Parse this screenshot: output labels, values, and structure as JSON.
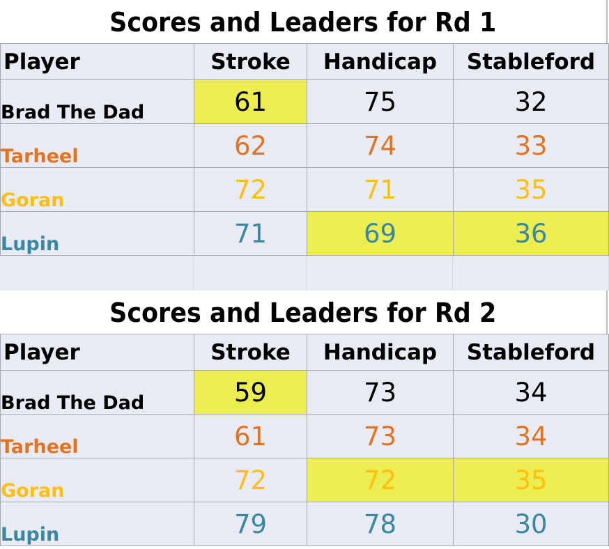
{
  "colors": {
    "cell_background": "#e8eaf4",
    "leader_highlight": "#eced4f",
    "grid_line": "#a7a7a7",
    "brad": "#000000",
    "tarheel": "#e2731f",
    "goran": "#ffbe10",
    "lupin": "#3a87a2"
  },
  "rounds": [
    {
      "title": "Scores and Leaders for Rd 1",
      "headers": [
        "Player",
        "Stroke",
        "Handicap",
        "Stableford"
      ],
      "rows": [
        {
          "player": "Brad The Dad",
          "stroke": "61",
          "handicap": "75",
          "stableford": "32"
        },
        {
          "player": "Tarheel",
          "stroke": "62",
          "handicap": "74",
          "stableford": "33"
        },
        {
          "player": "Goran",
          "stroke": "72",
          "handicap": "71",
          "stableford": "35"
        },
        {
          "player": "Lupin",
          "stroke": "71",
          "handicap": "69",
          "stableford": "36"
        }
      ]
    },
    {
      "title": "Scores and Leaders for Rd 2",
      "headers": [
        "Player",
        "Stroke",
        "Handicap",
        "Stableford"
      ],
      "rows": [
        {
          "player": "Brad The Dad",
          "stroke": "59",
          "handicap": "73",
          "stableford": "34"
        },
        {
          "player": "Tarheel",
          "stroke": "61",
          "handicap": "73",
          "stableford": "34"
        },
        {
          "player": "Goran",
          "stroke": "72",
          "handicap": "72",
          "stableford": "35"
        },
        {
          "player": "Lupin",
          "stroke": "79",
          "handicap": "78",
          "stableford": "30"
        }
      ]
    }
  ]
}
